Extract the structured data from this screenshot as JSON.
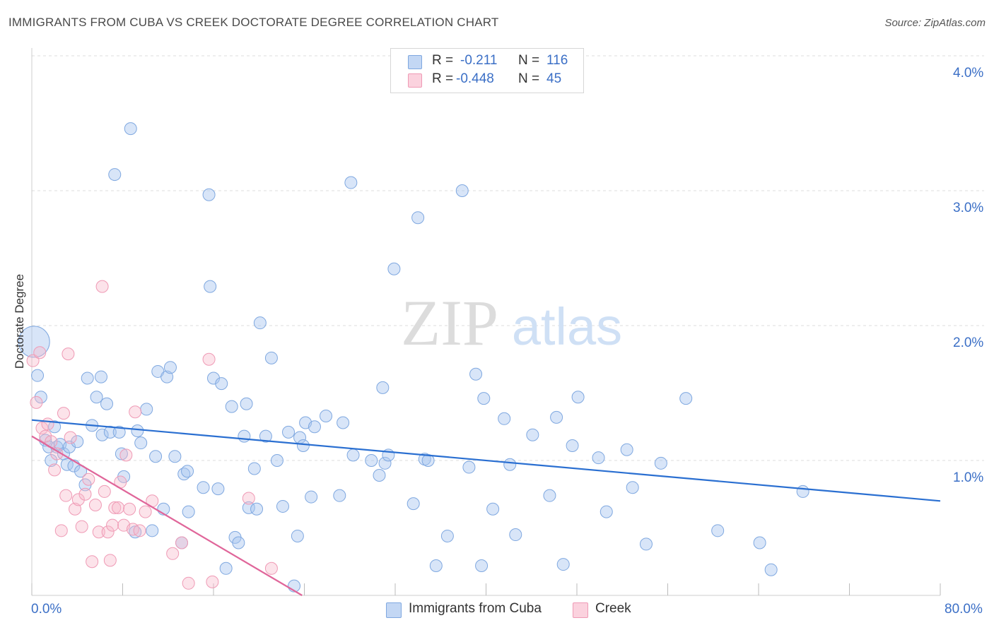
{
  "header": {
    "title": "IMMIGRANTS FROM CUBA VS CREEK DOCTORATE DEGREE CORRELATION CHART",
    "source": "Source: ZipAtlas.com"
  },
  "watermark": {
    "zip": "ZIP",
    "atlas": "atlas"
  },
  "legend": {
    "rows": [
      {
        "r_label": "R =",
        "r_value": "-0.211",
        "n_label": "N =",
        "n_value": "116",
        "color": "#a9c6f0"
      },
      {
        "r_label": "R =",
        "r_value": "-0.448",
        "n_label": "N =",
        "n_value": "45",
        "color": "#f7b8cb"
      }
    ]
  },
  "bottom_legend": [
    {
      "label": "Immigrants from Cuba",
      "color": "#a9c6f0"
    },
    {
      "label": "Creek",
      "color": "#f7b8cb"
    }
  ],
  "colors": {
    "series1_fill": "rgba(169,198,240,0.45)",
    "series1_stroke": "#7fa8e0",
    "series1_line": "#2a6fd1",
    "series2_fill": "rgba(247,184,203,0.40)",
    "series2_stroke": "#ef9ab5",
    "series2_line": "#e0669a",
    "grid": "#dddddd",
    "axis_text": "#3b6fc6"
  },
  "chart_data": {
    "type": "scatter",
    "title": "IMMIGRANTS FROM CUBA VS CREEK DOCTORATE DEGREE CORRELATION CHART",
    "xlabel": "",
    "ylabel": "Doctorate Degree",
    "xlim": [
      0,
      80
    ],
    "ylim": [
      0,
      4.0
    ],
    "x_tick_labels": [
      "0.0%",
      "80.0%"
    ],
    "y_ticks": [
      1.0,
      2.0,
      3.0,
      4.0
    ],
    "y_tick_labels": [
      "1.0%",
      "2.0%",
      "3.0%",
      "4.0%"
    ],
    "grid": "horizontal dashed",
    "legend_position": "top-center",
    "series": [
      {
        "name": "Immigrants from Cuba",
        "R": -0.211,
        "N": 116,
        "trend": {
          "x": [
            0,
            80
          ],
          "y": [
            1.3,
            0.7
          ]
        },
        "points": [
          [
            0.2,
            1.88
          ],
          [
            0.5,
            1.63
          ],
          [
            0.8,
            1.47
          ],
          [
            1.2,
            1.15
          ],
          [
            1.5,
            1.1
          ],
          [
            1.7,
            1.0
          ],
          [
            2.0,
            1.25
          ],
          [
            2.2,
            1.1
          ],
          [
            2.5,
            1.12
          ],
          [
            2.8,
            1.05
          ],
          [
            3.1,
            0.97
          ],
          [
            3.3,
            1.1
          ],
          [
            3.7,
            0.96
          ],
          [
            4.0,
            1.14
          ],
          [
            4.3,
            0.92
          ],
          [
            4.7,
            0.82
          ],
          [
            4.9,
            1.61
          ],
          [
            5.3,
            1.26
          ],
          [
            5.7,
            1.47
          ],
          [
            6.1,
            1.62
          ],
          [
            6.2,
            1.19
          ],
          [
            6.6,
            1.42
          ],
          [
            6.9,
            1.21
          ],
          [
            7.3,
            3.12
          ],
          [
            7.7,
            1.21
          ],
          [
            7.9,
            1.05
          ],
          [
            8.1,
            0.88
          ],
          [
            8.7,
            3.46
          ],
          [
            9.1,
            0.47
          ],
          [
            9.3,
            1.22
          ],
          [
            9.6,
            1.13
          ],
          [
            10.1,
            1.38
          ],
          [
            10.6,
            0.48
          ],
          [
            10.9,
            1.03
          ],
          [
            11.1,
            1.66
          ],
          [
            11.6,
            0.64
          ],
          [
            11.9,
            1.62
          ],
          [
            12.2,
            1.69
          ],
          [
            12.6,
            1.03
          ],
          [
            13.2,
            0.39
          ],
          [
            13.4,
            0.9
          ],
          [
            13.7,
            0.92
          ],
          [
            13.8,
            0.62
          ],
          [
            15.1,
            0.8
          ],
          [
            15.6,
            2.97
          ],
          [
            15.7,
            2.29
          ],
          [
            16.0,
            1.61
          ],
          [
            16.4,
            0.79
          ],
          [
            16.7,
            1.57
          ],
          [
            17.1,
            0.2
          ],
          [
            17.6,
            1.4
          ],
          [
            17.9,
            0.43
          ],
          [
            18.2,
            0.39
          ],
          [
            18.7,
            1.18
          ],
          [
            18.9,
            1.42
          ],
          [
            19.1,
            0.65
          ],
          [
            19.6,
            0.94
          ],
          [
            19.8,
            0.64
          ],
          [
            20.1,
            2.02
          ],
          [
            20.6,
            1.18
          ],
          [
            21.1,
            1.76
          ],
          [
            21.6,
            1.0
          ],
          [
            22.1,
            0.66
          ],
          [
            22.6,
            1.21
          ],
          [
            23.1,
            0.07
          ],
          [
            23.4,
            0.44
          ],
          [
            23.6,
            1.17
          ],
          [
            23.9,
            1.11
          ],
          [
            24.1,
            1.28
          ],
          [
            24.6,
            0.73
          ],
          [
            24.9,
            1.25
          ],
          [
            25.9,
            1.33
          ],
          [
            27.1,
            0.74
          ],
          [
            27.4,
            1.28
          ],
          [
            28.1,
            3.06
          ],
          [
            28.3,
            1.04
          ],
          [
            29.9,
            1.0
          ],
          [
            30.6,
            0.89
          ],
          [
            30.9,
            1.54
          ],
          [
            31.1,
            0.98
          ],
          [
            31.4,
            1.04
          ],
          [
            31.9,
            2.42
          ],
          [
            33.6,
            0.68
          ],
          [
            34.0,
            2.8
          ],
          [
            34.6,
            1.01
          ],
          [
            34.9,
            1.0
          ],
          [
            35.6,
            0.22
          ],
          [
            36.6,
            0.44
          ],
          [
            37.9,
            3.0
          ],
          [
            38.5,
            0.95
          ],
          [
            39.1,
            1.64
          ],
          [
            39.6,
            0.22
          ],
          [
            39.8,
            1.46
          ],
          [
            40.6,
            0.64
          ],
          [
            41.6,
            1.31
          ],
          [
            42.1,
            0.97
          ],
          [
            42.6,
            0.45
          ],
          [
            44.1,
            1.19
          ],
          [
            45.6,
            0.74
          ],
          [
            46.2,
            1.32
          ],
          [
            46.8,
            0.23
          ],
          [
            47.6,
            1.11
          ],
          [
            48.1,
            1.47
          ],
          [
            49.9,
            1.02
          ],
          [
            50.6,
            0.62
          ],
          [
            52.4,
            1.08
          ],
          [
            52.9,
            0.8
          ],
          [
            54.1,
            0.38
          ],
          [
            55.4,
            0.98
          ],
          [
            57.6,
            1.46
          ],
          [
            60.4,
            0.48
          ],
          [
            64.1,
            0.39
          ],
          [
            65.1,
            0.19
          ],
          [
            67.9,
            0.77
          ]
        ]
      },
      {
        "name": "Creek",
        "R": -0.448,
        "N": 45,
        "trend": {
          "x": [
            0,
            23.8
          ],
          "y": [
            1.18,
            0.0
          ]
        },
        "points": [
          [
            0.1,
            1.74
          ],
          [
            0.4,
            1.43
          ],
          [
            0.7,
            1.8
          ],
          [
            0.9,
            1.24
          ],
          [
            1.2,
            1.18
          ],
          [
            1.4,
            1.27
          ],
          [
            1.7,
            1.14
          ],
          [
            2.0,
            0.93
          ],
          [
            2.2,
            1.05
          ],
          [
            2.6,
            0.48
          ],
          [
            2.8,
            1.35
          ],
          [
            3.0,
            0.74
          ],
          [
            3.2,
            1.79
          ],
          [
            3.4,
            1.17
          ],
          [
            3.8,
            0.64
          ],
          [
            4.1,
            0.71
          ],
          [
            4.4,
            0.51
          ],
          [
            4.7,
            0.75
          ],
          [
            5.0,
            0.86
          ],
          [
            5.3,
            0.25
          ],
          [
            5.6,
            0.67
          ],
          [
            5.9,
            0.47
          ],
          [
            6.2,
            2.29
          ],
          [
            6.4,
            0.77
          ],
          [
            6.7,
            0.47
          ],
          [
            6.9,
            0.26
          ],
          [
            7.1,
            0.52
          ],
          [
            7.3,
            0.65
          ],
          [
            7.6,
            0.65
          ],
          [
            7.8,
            0.84
          ],
          [
            8.1,
            0.52
          ],
          [
            8.3,
            1.04
          ],
          [
            8.6,
            0.64
          ],
          [
            8.9,
            0.49
          ],
          [
            9.1,
            1.36
          ],
          [
            9.5,
            0.48
          ],
          [
            10.0,
            0.62
          ],
          [
            10.6,
            0.7
          ],
          [
            12.4,
            0.31
          ],
          [
            13.2,
            0.39
          ],
          [
            13.8,
            0.09
          ],
          [
            15.6,
            1.75
          ],
          [
            15.9,
            0.1
          ],
          [
            19.1,
            0.72
          ],
          [
            21.1,
            0.2
          ]
        ]
      }
    ]
  }
}
